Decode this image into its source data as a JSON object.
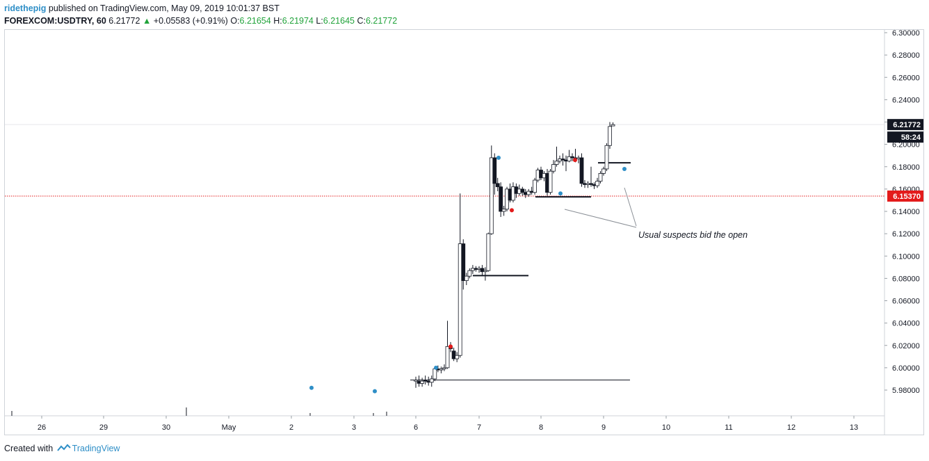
{
  "header": {
    "user": "ridethepig",
    "published": "published on TradingView.com, May 09, 2019 10:01:37 BST",
    "symbol": "FOREXCOM:USDTRY, 60",
    "last": "6.21772",
    "arrow": "▲",
    "change": "+0.05583 (+0.91%)",
    "o_label": "O:",
    "o_value": "6.21654",
    "h_label": "H:",
    "h_value": "6.21974",
    "l_label": "L:",
    "l_value": "6.21645",
    "c_label": "C:",
    "c_value": "6.21772"
  },
  "footer": {
    "created": "Created with",
    "brand": "TradingView"
  },
  "colors": {
    "up": "#21a33b",
    "link": "#2f8fc7",
    "level": "#e31b1b",
    "marker_blue": "#2f8fc7",
    "marker_red": "#e31b1b"
  },
  "chart_data": {
    "type": "candlestick",
    "ylim": [
      5.975,
      6.305
    ],
    "y_ticks": [
      "6.30000",
      "6.28000",
      "6.26000",
      "6.24000",
      "6.22000",
      "6.20000",
      "6.18000",
      "6.16000",
      "6.14000",
      "6.12000",
      "6.10000",
      "6.08000",
      "6.06000",
      "6.04000",
      "6.02000",
      "6.00000",
      "5.98000"
    ],
    "x_ticks": [
      "26",
      "29",
      "30",
      "May",
      "2",
      "3",
      "6",
      "7",
      "8",
      "9",
      "10",
      "11",
      "12",
      "13"
    ],
    "current_price": {
      "label": "6.21772",
      "value": 6.21772
    },
    "countdown": "58:24",
    "level": {
      "label": "6.15370",
      "value": 6.1537
    },
    "annotation": "Usual suspects bid the open",
    "series": [
      {
        "d": 6.0,
        "o": 5.988,
        "h": 5.992,
        "l": 5.982,
        "c": 5.989
      },
      {
        "d": 6.05,
        "o": 5.988,
        "h": 5.993,
        "l": 5.983,
        "c": 5.986
      },
      {
        "d": 6.1,
        "o": 5.986,
        "h": 5.991,
        "l": 5.983,
        "c": 5.988
      },
      {
        "d": 6.15,
        "o": 5.989,
        "h": 5.993,
        "l": 5.985,
        "c": 5.988
      },
      {
        "d": 6.2,
        "o": 5.988,
        "h": 5.992,
        "l": 5.984,
        "c": 5.987
      },
      {
        "d": 6.25,
        "o": 5.987,
        "h": 5.993,
        "l": 5.983,
        "c": 5.99
      },
      {
        "d": 6.3,
        "o": 5.99,
        "h": 6.0,
        "l": 5.988,
        "c": 5.999
      },
      {
        "d": 6.35,
        "o": 5.999,
        "h": 6.002,
        "l": 5.996,
        "c": 5.998
      },
      {
        "d": 6.4,
        "o": 5.998,
        "h": 6.001,
        "l": 5.995,
        "c": 5.999
      },
      {
        "d": 6.45,
        "o": 5.999,
        "h": 6.003,
        "l": 5.997,
        "c": 6.0
      },
      {
        "d": 6.5,
        "o": 6.0,
        "h": 6.042,
        "l": 5.999,
        "c": 6.019
      },
      {
        "d": 6.55,
        "o": 6.019,
        "h": 6.023,
        "l": 6.014,
        "c": 6.017
      },
      {
        "d": 6.6,
        "o": 6.015,
        "h": 6.018,
        "l": 6.006,
        "c": 6.008
      },
      {
        "d": 6.65,
        "o": 6.008,
        "h": 6.014,
        "l": 6.005,
        "c": 6.011
      },
      {
        "d": 6.7,
        "o": 6.011,
        "h": 6.156,
        "l": 6.009,
        "c": 6.111
      },
      {
        "d": 6.75,
        "o": 6.111,
        "h": 6.115,
        "l": 6.07,
        "c": 6.078
      },
      {
        "d": 6.8,
        "o": 6.078,
        "h": 6.085,
        "l": 6.074,
        "c": 6.082
      },
      {
        "d": 6.85,
        "o": 6.082,
        "h": 6.089,
        "l": 6.08,
        "c": 6.087
      },
      {
        "d": 6.9,
        "o": 6.087,
        "h": 6.092,
        "l": 6.084,
        "c": 6.089
      },
      {
        "d": 6.95,
        "o": 6.089,
        "h": 6.091,
        "l": 6.086,
        "c": 6.088
      },
      {
        "d": 7.0,
        "o": 6.088,
        "h": 6.091,
        "l": 6.085,
        "c": 6.089
      },
      {
        "d": 7.05,
        "o": 6.089,
        "h": 6.092,
        "l": 6.083,
        "c": 6.086
      },
      {
        "d": 7.1,
        "o": 6.086,
        "h": 6.09,
        "l": 6.078,
        "c": 6.087
      },
      {
        "d": 7.15,
        "o": 6.087,
        "h": 6.121,
        "l": 6.086,
        "c": 6.12
      },
      {
        "d": 7.2,
        "o": 6.12,
        "h": 6.199,
        "l": 6.119,
        "c": 6.188
      },
      {
        "d": 7.25,
        "o": 6.188,
        "h": 6.192,
        "l": 6.155,
        "c": 6.165
      },
      {
        "d": 7.3,
        "o": 6.165,
        "h": 6.17,
        "l": 6.158,
        "c": 6.162
      },
      {
        "d": 7.35,
        "o": 6.162,
        "h": 6.166,
        "l": 6.135,
        "c": 6.14
      },
      {
        "d": 7.4,
        "o": 6.14,
        "h": 6.145,
        "l": 6.136,
        "c": 6.142
      },
      {
        "d": 7.45,
        "o": 6.142,
        "h": 6.162,
        "l": 6.14,
        "c": 6.16
      },
      {
        "d": 7.5,
        "o": 6.16,
        "h": 6.165,
        "l": 6.148,
        "c": 6.15
      },
      {
        "d": 7.55,
        "o": 6.15,
        "h": 6.166,
        "l": 6.148,
        "c": 6.162
      },
      {
        "d": 7.6,
        "o": 6.162,
        "h": 6.165,
        "l": 6.152,
        "c": 6.156
      },
      {
        "d": 7.65,
        "o": 6.156,
        "h": 6.164,
        "l": 6.154,
        "c": 6.16
      },
      {
        "d": 7.7,
        "o": 6.16,
        "h": 6.162,
        "l": 6.154,
        "c": 6.157
      },
      {
        "d": 7.75,
        "o": 6.157,
        "h": 6.16,
        "l": 6.152,
        "c": 6.155
      },
      {
        "d": 7.8,
        "o": 6.155,
        "h": 6.16,
        "l": 6.153,
        "c": 6.158
      },
      {
        "d": 7.85,
        "o": 6.158,
        "h": 6.162,
        "l": 6.155,
        "c": 6.157
      },
      {
        "d": 7.9,
        "o": 6.157,
        "h": 6.17,
        "l": 6.155,
        "c": 6.168
      },
      {
        "d": 7.95,
        "o": 6.168,
        "h": 6.179,
        "l": 6.166,
        "c": 6.177
      },
      {
        "d": 8.0,
        "o": 6.177,
        "h": 6.18,
        "l": 6.168,
        "c": 6.17
      },
      {
        "d": 8.05,
        "o": 6.17,
        "h": 6.176,
        "l": 6.167,
        "c": 6.174
      },
      {
        "d": 8.1,
        "o": 6.174,
        "h": 6.178,
        "l": 6.154,
        "c": 6.157
      },
      {
        "d": 8.15,
        "o": 6.157,
        "h": 6.178,
        "l": 6.155,
        "c": 6.176
      },
      {
        "d": 8.2,
        "o": 6.176,
        "h": 6.186,
        "l": 6.174,
        "c": 6.182
      },
      {
        "d": 8.25,
        "o": 6.182,
        "h": 6.198,
        "l": 6.18,
        "c": 6.185
      },
      {
        "d": 8.3,
        "o": 6.185,
        "h": 6.19,
        "l": 6.183,
        "c": 6.187
      },
      {
        "d": 8.35,
        "o": 6.187,
        "h": 6.192,
        "l": 6.181,
        "c": 6.186
      },
      {
        "d": 8.4,
        "o": 6.186,
        "h": 6.19,
        "l": 6.176,
        "c": 6.185
      },
      {
        "d": 8.45,
        "o": 6.185,
        "h": 6.195,
        "l": 6.184,
        "c": 6.189
      },
      {
        "d": 8.5,
        "o": 6.189,
        "h": 6.192,
        "l": 6.185,
        "c": 6.188
      },
      {
        "d": 8.55,
        "o": 6.188,
        "h": 6.196,
        "l": 6.184,
        "c": 6.187
      },
      {
        "d": 8.6,
        "o": 6.187,
        "h": 6.19,
        "l": 6.183,
        "c": 6.188
      },
      {
        "d": 8.65,
        "o": 6.188,
        "h": 6.192,
        "l": 6.162,
        "c": 6.165
      },
      {
        "d": 8.7,
        "o": 6.165,
        "h": 6.168,
        "l": 6.161,
        "c": 6.164
      },
      {
        "d": 8.75,
        "o": 6.164,
        "h": 6.167,
        "l": 6.161,
        "c": 6.165
      },
      {
        "d": 8.8,
        "o": 6.165,
        "h": 6.18,
        "l": 6.162,
        "c": 6.164
      },
      {
        "d": 8.85,
        "o": 6.164,
        "h": 6.166,
        "l": 6.16,
        "c": 6.163
      },
      {
        "d": 8.9,
        "o": 6.163,
        "h": 6.17,
        "l": 6.161,
        "c": 6.167
      },
      {
        "d": 8.95,
        "o": 6.167,
        "h": 6.176,
        "l": 6.165,
        "c": 6.174
      },
      {
        "d": 9.0,
        "o": 6.174,
        "h": 6.18,
        "l": 6.172,
        "c": 6.178
      },
      {
        "d": 9.05,
        "o": 6.178,
        "h": 6.201,
        "l": 6.176,
        "c": 6.199
      },
      {
        "d": 9.1,
        "o": 6.199,
        "h": 6.22,
        "l": 6.196,
        "c": 6.216
      },
      {
        "d": 9.15,
        "o": 6.2165,
        "h": 6.2197,
        "l": 6.2165,
        "c": 6.2177
      }
    ]
  }
}
